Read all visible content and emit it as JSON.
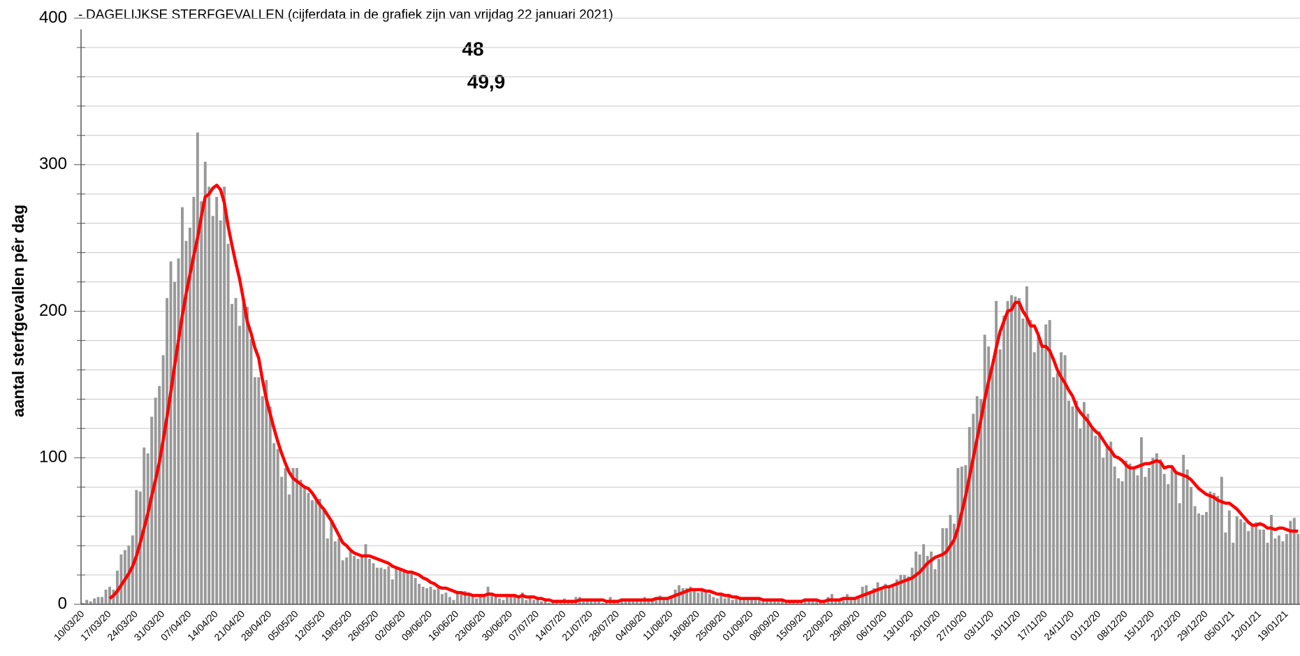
{
  "chart_data": {
    "type": "bar",
    "title": "DAGELIJKSE STERFGEVALLEN (cijferdata in de grafiek zijn van vrijdag 22 januari 2021)",
    "y_label": "aantal sterfgevallen pêr dag",
    "annotations": [
      {
        "text": "48",
        "color": "#888888"
      },
      {
        "text": "49,9",
        "color": "#ff0000"
      }
    ],
    "categories": [
      "10/03/20",
      null,
      null,
      null,
      null,
      null,
      null,
      "17/03/20",
      null,
      null,
      null,
      null,
      null,
      null,
      "24/03/20",
      null,
      null,
      null,
      null,
      null,
      null,
      "31/03/20",
      null,
      null,
      null,
      null,
      null,
      null,
      "07/04/20",
      null,
      null,
      null,
      null,
      null,
      null,
      "14/04/20",
      null,
      null,
      null,
      null,
      null,
      null,
      "21/04/20",
      null,
      null,
      null,
      null,
      null,
      null,
      "28/04/20",
      null,
      null,
      null,
      null,
      null,
      null,
      "05/05/20",
      null,
      null,
      null,
      null,
      null,
      null,
      "12/05/20",
      null,
      null,
      null,
      null,
      null,
      null,
      "19/05/20",
      null,
      null,
      null,
      null,
      null,
      null,
      "26/05/20",
      null,
      null,
      null,
      null,
      null,
      null,
      "02/06/20",
      null,
      null,
      null,
      null,
      null,
      null,
      "09/06/20",
      null,
      null,
      null,
      null,
      null,
      null,
      "16/06/20",
      null,
      null,
      null,
      null,
      null,
      null,
      "23/06/20",
      null,
      null,
      null,
      null,
      null,
      null,
      "30/06/20",
      null,
      null,
      null,
      null,
      null,
      null,
      "07/07/20",
      null,
      null,
      null,
      null,
      null,
      null,
      "14/07/20",
      null,
      null,
      null,
      null,
      null,
      null,
      "21/07/20",
      null,
      null,
      null,
      null,
      null,
      null,
      "28/07/20",
      null,
      null,
      null,
      null,
      null,
      null,
      "04/08/20",
      null,
      null,
      null,
      null,
      null,
      null,
      "11/08/20",
      null,
      null,
      null,
      null,
      null,
      null,
      "18/08/20",
      null,
      null,
      null,
      null,
      null,
      null,
      "25/08/20",
      null,
      null,
      null,
      null,
      null,
      null,
      "01/09/20",
      null,
      null,
      null,
      null,
      null,
      null,
      "08/09/20",
      null,
      null,
      null,
      null,
      null,
      null,
      "15/09/20",
      null,
      null,
      null,
      null,
      null,
      null,
      "22/09/20",
      null,
      null,
      null,
      null,
      null,
      null,
      "29/09/20",
      null,
      null,
      null,
      null,
      null,
      null,
      "06/10/20",
      null,
      null,
      null,
      null,
      null,
      null,
      "13/10/20",
      null,
      null,
      null,
      null,
      null,
      null,
      "20/10/20",
      null,
      null,
      null,
      null,
      null,
      null,
      "27/10/20",
      null,
      null,
      null,
      null,
      null,
      null,
      "03/11/20",
      null,
      null,
      null,
      null,
      null,
      null,
      "10/11/20",
      null,
      null,
      null,
      null,
      null,
      null,
      "17/11/20",
      null,
      null,
      null,
      null,
      null,
      null,
      "24/11/20",
      null,
      null,
      null,
      null,
      null,
      null,
      "01/12/20",
      null,
      null,
      null,
      null,
      null,
      null,
      "08/12/20",
      null,
      null,
      null,
      null,
      null,
      null,
      "15/12/20",
      null,
      null,
      null,
      null,
      null,
      null,
      "22/12/20",
      null,
      null,
      null,
      null,
      null,
      null,
      "29/12/20",
      null,
      null,
      null,
      null,
      null,
      null,
      "05/01/21",
      null,
      null,
      null,
      null,
      null,
      null,
      "12/01/21",
      null,
      null,
      null,
      null,
      null,
      null,
      "19/01/21",
      null,
      null,
      null
    ],
    "series": [
      {
        "kind": "bar",
        "color": "#999999",
        "values": [
          1,
          3,
          2,
          4,
          5,
          5,
          10,
          12,
          10,
          23,
          34,
          37,
          40,
          47,
          78,
          77,
          107,
          103,
          128,
          141,
          149,
          170,
          209,
          234,
          220,
          236,
          271,
          248,
          257,
          278,
          322,
          275,
          302,
          285,
          265,
          278,
          262,
          285,
          246,
          205,
          209,
          190,
          206,
          203,
          181,
          155,
          155,
          142,
          153,
          135,
          110,
          106,
          87,
          93,
          75,
          93,
          93,
          85,
          81,
          76,
          71,
          73,
          72,
          66,
          45,
          56,
          43,
          45,
          30,
          32,
          36,
          33,
          31,
          33,
          41,
          31,
          28,
          25,
          25,
          24,
          26,
          17,
          25,
          23,
          22,
          21,
          22,
          18,
          14,
          12,
          11,
          12,
          10,
          11,
          7,
          8,
          5,
          3,
          9,
          7,
          9,
          7,
          6,
          4,
          5,
          7,
          12,
          6,
          5,
          4,
          3,
          7,
          6,
          5,
          4,
          8,
          3,
          5,
          3,
          4,
          2,
          2,
          1,
          2,
          1,
          1,
          4,
          1,
          2,
          5,
          5,
          3,
          2,
          3,
          3,
          2,
          1,
          2,
          5,
          1,
          3,
          4,
          2,
          3,
          2,
          3,
          2,
          5,
          3,
          4,
          4,
          6,
          3,
          5,
          5,
          10,
          13,
          11,
          11,
          12,
          10,
          8,
          9,
          8,
          7,
          5,
          4,
          6,
          4,
          5,
          3,
          4,
          4,
          5,
          4,
          3,
          5,
          3,
          3,
          2,
          4,
          2,
          2,
          3,
          1,
          3,
          2,
          3,
          3,
          4,
          2,
          2,
          3,
          2,
          1,
          5,
          7,
          3,
          3,
          5,
          7,
          4,
          4,
          5,
          12,
          13,
          9,
          11,
          15,
          11,
          14,
          13,
          12,
          17,
          20,
          20,
          19,
          25,
          36,
          34,
          41,
          33,
          36,
          24,
          31,
          52,
          52,
          61,
          55,
          93,
          94,
          95,
          121,
          130,
          142,
          140,
          184,
          176,
          163,
          207,
          174,
          197,
          207,
          211,
          210,
          209,
          195,
          217,
          194,
          172,
          183,
          176,
          191,
          194,
          155,
          158,
          172,
          170,
          139,
          135,
          139,
          120,
          138,
          130,
          120,
          115,
          118,
          100,
          109,
          111,
          94,
          86,
          84,
          98,
          96,
          93,
          88,
          114,
          87,
          93,
          100,
          103,
          99,
          89,
          82,
          93,
          91,
          69,
          102,
          92,
          80,
          67,
          62,
          61,
          63,
          77,
          76,
          74,
          87,
          49,
          64,
          42,
          60,
          58,
          56,
          50,
          53,
          56,
          51,
          51,
          42,
          61,
          45,
          47,
          43,
          48,
          57,
          59,
          48
        ]
      },
      {
        "kind": "line",
        "color": "#ff0000",
        "values": [
          null,
          null,
          null,
          null,
          null,
          null,
          null,
          4,
          6,
          9,
          13,
          17,
          21,
          26,
          33,
          42,
          52,
          62,
          74,
          85,
          97,
          112,
          128,
          145,
          163,
          180,
          197,
          212,
          225,
          238,
          250,
          265,
          278,
          280,
          284,
          286,
          283,
          274,
          258,
          245,
          233,
          222,
          208,
          193,
          185,
          175,
          168,
          153,
          140,
          130,
          120,
          111,
          103,
          96,
          90,
          86,
          84,
          82,
          80,
          79,
          76,
          72,
          68,
          65,
          61,
          57,
          52,
          47,
          42,
          40,
          37,
          35,
          34,
          33,
          33,
          33,
          32,
          31,
          30,
          29,
          28,
          26,
          25,
          24,
          23,
          22,
          22,
          21,
          20,
          18,
          17,
          15,
          14,
          12,
          11,
          11,
          10,
          9,
          8,
          8,
          7,
          7,
          6,
          6,
          6,
          6,
          7,
          7,
          6,
          6,
          6,
          6,
          6,
          6,
          5,
          6,
          5,
          5,
          5,
          4,
          4,
          3,
          3,
          2,
          2,
          2,
          2,
          2,
          2,
          2,
          3,
          3,
          3,
          3,
          3,
          3,
          3,
          2,
          2,
          2,
          2,
          3,
          3,
          3,
          3,
          3,
          3,
          3,
          3,
          3,
          4,
          4,
          4,
          4,
          5,
          6,
          7,
          8,
          9,
          10,
          10,
          10,
          10,
          9,
          9,
          8,
          7,
          7,
          6,
          6,
          5,
          5,
          4,
          4,
          4,
          4,
          4,
          4,
          3,
          3,
          3,
          3,
          3,
          3,
          2,
          2,
          2,
          2,
          2,
          3,
          3,
          3,
          3,
          2,
          2,
          3,
          3,
          3,
          3,
          4,
          4,
          4,
          4,
          5,
          6,
          7,
          8,
          9,
          10,
          11,
          12,
          12,
          13,
          14,
          15,
          16,
          17,
          18,
          20,
          22,
          25,
          28,
          30,
          32,
          33,
          34,
          36,
          40,
          44,
          52,
          63,
          74,
          87,
          100,
          113,
          126,
          140,
          152,
          163,
          175,
          186,
          193,
          200,
          201,
          206,
          206,
          200,
          196,
          190,
          190,
          184,
          176,
          176,
          173,
          167,
          160,
          155,
          151,
          146,
          142,
          135,
          131,
          128,
          125,
          121,
          118,
          116,
          112,
          108,
          105,
          101,
          100,
          98,
          95,
          93,
          93,
          94,
          95,
          96,
          96,
          97,
          98,
          97,
          93,
          94,
          94,
          90,
          89,
          88,
          87,
          85,
          82,
          79,
          77,
          75,
          74,
          73,
          71,
          70,
          69,
          69,
          67,
          65,
          62,
          59,
          56,
          54,
          54,
          55,
          54,
          52,
          52,
          51,
          52,
          52,
          51,
          50,
          50,
          49.9
        ]
      }
    ],
    "ylim": [
      0,
      400
    ],
    "yticks": [
      0,
      100,
      200,
      300,
      400
    ],
    "minor_yticks": [
      20,
      40,
      60,
      80,
      120,
      140,
      160,
      180,
      220,
      240,
      260,
      280,
      320,
      340,
      360,
      380
    ],
    "grid": true,
    "grid_color": "#c8c8c8"
  }
}
